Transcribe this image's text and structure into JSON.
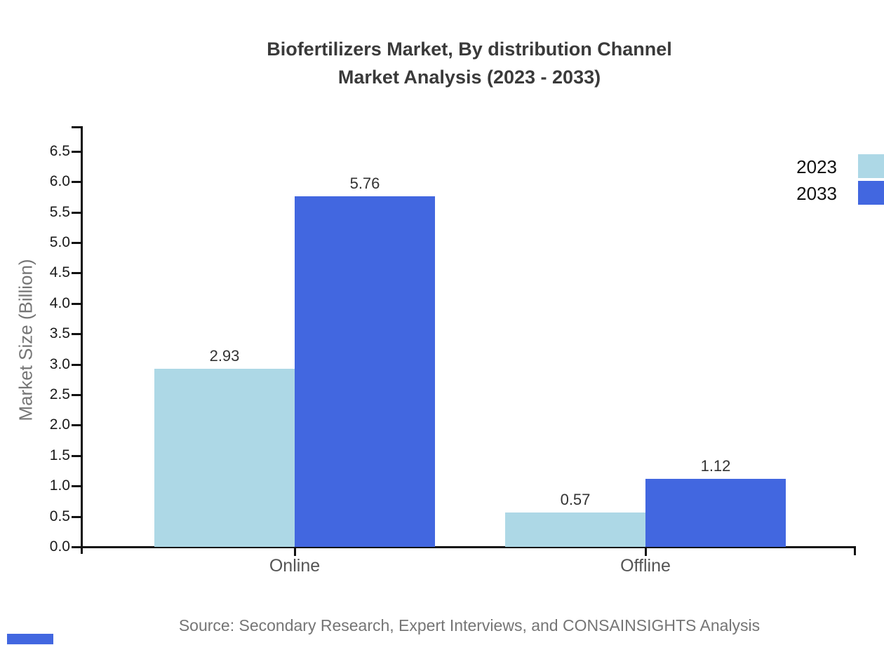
{
  "title": {
    "line1": "Biofertilizers Market, By distribution Channel",
    "line2": "Market Analysis (2023 - 2033)"
  },
  "chart_data": {
    "type": "bar",
    "title": "Biofertilizers Market, By distribution Channel Market Analysis (2023 - 2033)",
    "categories": [
      "Online",
      "Offline"
    ],
    "series": [
      {
        "name": "2023",
        "color": "#add8e6",
        "values": [
          2.93,
          0.57
        ]
      },
      {
        "name": "2033",
        "color": "#4267e0",
        "values": [
          5.76,
          1.12
        ]
      }
    ],
    "value_labels": [
      [
        "2.93",
        "0.57"
      ],
      [
        "5.76",
        "1.12"
      ]
    ],
    "xlabel": "",
    "ylabel": "Market Size (Billion)",
    "ylim": [
      0,
      6.5
    ],
    "ytick_step": 0.5,
    "ytick_labels": [
      "0.0",
      "0.5",
      "1.0",
      "1.5",
      "2.0",
      "2.5",
      "3.0",
      "3.5",
      "4.0",
      "4.5",
      "5.0",
      "5.5",
      "6.0",
      "6.5"
    ],
    "grid": false,
    "legend_position": "top-right"
  },
  "source": "Source: Secondary Research, Expert Interviews, and CONSAINSIGHTS Analysis",
  "colors": {
    "series_2023": "#add8e6",
    "series_2033": "#4267e0",
    "title_text": "#3a3a3a",
    "axis": "#111111",
    "tick_text": "#1a1a1a",
    "category_text": "#555555",
    "muted_text": "#757575",
    "value_text": "#333333",
    "background": "#ffffff"
  }
}
